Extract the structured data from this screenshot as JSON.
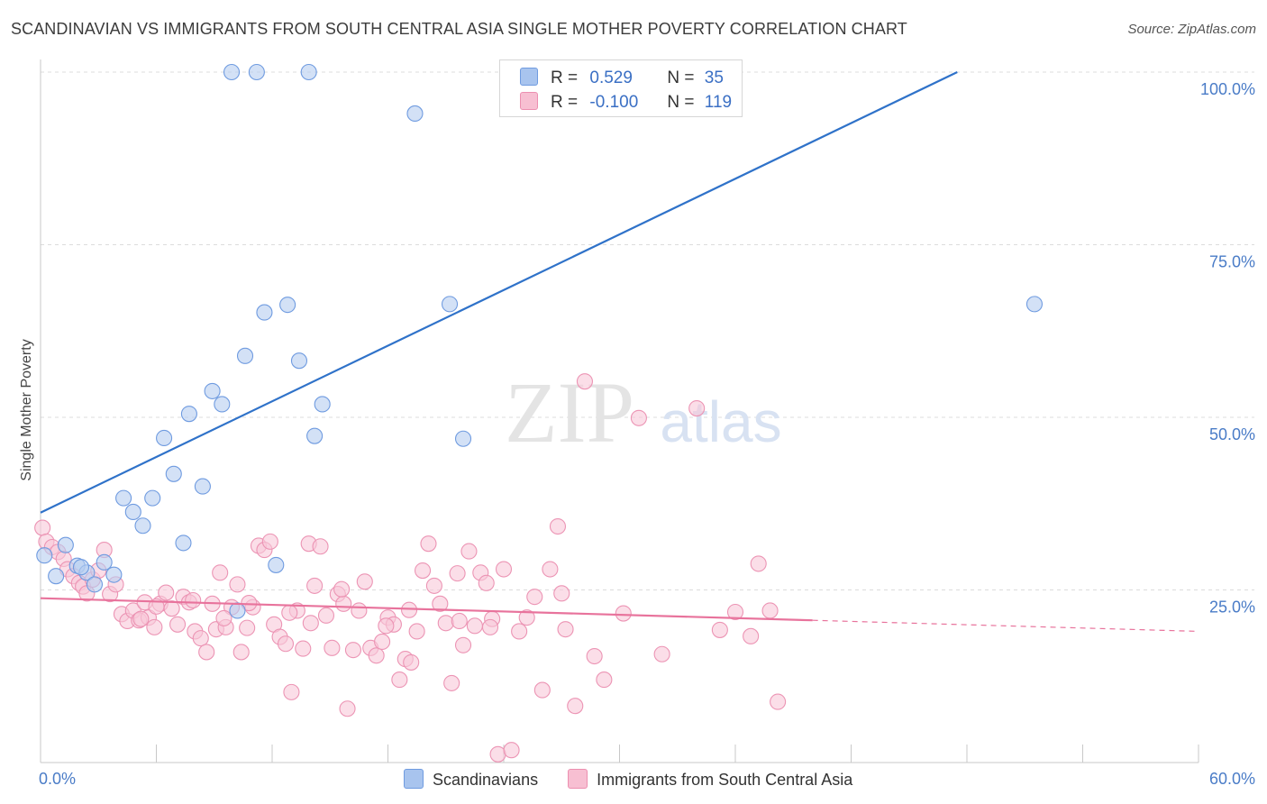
{
  "header": {
    "title": "SCANDINAVIAN VS IMMIGRANTS FROM SOUTH CENTRAL ASIA SINGLE MOTHER POVERTY CORRELATION CHART",
    "source": "Source: ZipAtlas.com"
  },
  "watermark": {
    "zip": "ZIP",
    "atlas": "atlas"
  },
  "legend": {
    "r_label": "R =",
    "n_label": "N =",
    "rows": [
      {
        "name": "Scandinavians",
        "r": "0.529",
        "n": "35",
        "color": "#a8c4ee",
        "border": "#6f9be0"
      },
      {
        "name": "Immigrants from South Central Asia",
        "r": "-0.100",
        "n": "119",
        "color": "#f7bfd2",
        "border": "#ec8fb0"
      }
    ]
  },
  "colors": {
    "blue_fill": "#b5cdf0",
    "blue_stroke": "#6f9be0",
    "blue_line": "#2f72c9",
    "pink_fill": "#f8c8d8",
    "pink_stroke": "#ec94b4",
    "pink_line": "#e8739c",
    "grid": "#dcdcdc",
    "axis_text": "#4a7cc7"
  },
  "chart_data": {
    "type": "scatter",
    "title": "SCANDINAVIAN VS IMMIGRANTS FROM SOUTH CENTRAL ASIA SINGLE MOTHER POVERTY CORRELATION CHART",
    "xlabel": "",
    "ylabel": "Single Mother Poverty",
    "xlim": [
      0,
      60
    ],
    "ylim": [
      0,
      100
    ],
    "x_tick_labels": [
      "0.0%",
      "60.0%"
    ],
    "y_ticks": [
      25,
      50,
      75,
      100
    ],
    "y_tick_labels": [
      "25.0%",
      "50.0%",
      "75.0%",
      "100.0%"
    ],
    "grid": true,
    "legend_position": "top-center",
    "series": [
      {
        "name": "Scandinavians",
        "r": 0.529,
        "n": 35,
        "trend": {
          "x": [
            0,
            47.5
          ],
          "y": [
            36.2,
            100
          ]
        },
        "points": [
          [
            0.2,
            30
          ],
          [
            0.8,
            27
          ],
          [
            1.3,
            31.5
          ],
          [
            1.9,
            28.5
          ],
          [
            2.4,
            27.5
          ],
          [
            2.8,
            25.8
          ],
          [
            3.3,
            29
          ],
          [
            3.8,
            27.2
          ],
          [
            4.3,
            38.3
          ],
          [
            4.8,
            36.3
          ],
          [
            5.3,
            34.3
          ],
          [
            5.8,
            38.3
          ],
          [
            6.4,
            47
          ],
          [
            6.9,
            41.8
          ],
          [
            7.4,
            31.8
          ],
          [
            7.7,
            50.5
          ],
          [
            8.4,
            40
          ],
          [
            8.9,
            53.8
          ],
          [
            9.4,
            51.9
          ],
          [
            9.9,
            100
          ],
          [
            10.2,
            22
          ],
          [
            10.6,
            58.9
          ],
          [
            11.2,
            100
          ],
          [
            11.6,
            65.2
          ],
          [
            12.2,
            28.6
          ],
          [
            12.8,
            66.3
          ],
          [
            13.4,
            58.2
          ],
          [
            13.9,
            100
          ],
          [
            14.2,
            47.3
          ],
          [
            14.6,
            51.9
          ],
          [
            19.4,
            94
          ],
          [
            21.2,
            66.4
          ],
          [
            21.9,
            46.9
          ],
          [
            51.5,
            66.4
          ],
          [
            2.1,
            28.3
          ]
        ]
      },
      {
        "name": "Immigrants from South Central Asia",
        "r": -0.1,
        "n": 119,
        "trend": {
          "x": [
            0,
            40
          ],
          "y": [
            23.8,
            20.6
          ]
        },
        "trend_extension": {
          "x": [
            40,
            60
          ],
          "y": [
            20.6,
            19
          ]
        },
        "points": [
          [
            0.1,
            34
          ],
          [
            0.3,
            32
          ],
          [
            0.6,
            31.2
          ],
          [
            0.9,
            30.5
          ],
          [
            1.2,
            29.5
          ],
          [
            1.4,
            28
          ],
          [
            1.7,
            27
          ],
          [
            2.0,
            26
          ],
          [
            2.2,
            25.5
          ],
          [
            2.4,
            24.5
          ],
          [
            2.7,
            26.5
          ],
          [
            3.0,
            27.8
          ],
          [
            3.3,
            30.8
          ],
          [
            3.6,
            24.4
          ],
          [
            3.9,
            25.8
          ],
          [
            4.2,
            21.5
          ],
          [
            4.5,
            20.5
          ],
          [
            4.8,
            22
          ],
          [
            5.1,
            20.6
          ],
          [
            5.4,
            23.2
          ],
          [
            5.6,
            21
          ],
          [
            5.9,
            19.6
          ],
          [
            6.2,
            23
          ],
          [
            6.5,
            24.6
          ],
          [
            6.8,
            22.3
          ],
          [
            7.1,
            20
          ],
          [
            7.4,
            24
          ],
          [
            7.7,
            23.2
          ],
          [
            8.0,
            19
          ],
          [
            8.3,
            18
          ],
          [
            8.6,
            16
          ],
          [
            8.9,
            23
          ],
          [
            9.1,
            19.3
          ],
          [
            9.3,
            27.5
          ],
          [
            9.6,
            19.6
          ],
          [
            9.9,
            22.5
          ],
          [
            10.2,
            25.8
          ],
          [
            10.4,
            16
          ],
          [
            10.7,
            19.5
          ],
          [
            11.0,
            22.5
          ],
          [
            11.3,
            31.4
          ],
          [
            11.6,
            30.8
          ],
          [
            11.9,
            32
          ],
          [
            12.1,
            20
          ],
          [
            12.4,
            18.2
          ],
          [
            12.7,
            17.2
          ],
          [
            13.0,
            10.2
          ],
          [
            13.3,
            22
          ],
          [
            13.6,
            16.5
          ],
          [
            13.9,
            31.7
          ],
          [
            14.2,
            25.6
          ],
          [
            14.5,
            31.3
          ],
          [
            14.8,
            21.3
          ],
          [
            15.1,
            16.6
          ],
          [
            15.4,
            24.4
          ],
          [
            15.7,
            23
          ],
          [
            15.9,
            7.8
          ],
          [
            16.2,
            16.3
          ],
          [
            16.5,
            22
          ],
          [
            16.8,
            26.2
          ],
          [
            17.1,
            16.6
          ],
          [
            17.4,
            15.5
          ],
          [
            17.7,
            17.5
          ],
          [
            18.0,
            21
          ],
          [
            18.3,
            20
          ],
          [
            18.6,
            12
          ],
          [
            18.9,
            15
          ],
          [
            19.2,
            14.5
          ],
          [
            19.5,
            19
          ],
          [
            19.8,
            27.8
          ],
          [
            20.1,
            31.7
          ],
          [
            20.4,
            25.6
          ],
          [
            20.7,
            23
          ],
          [
            21.0,
            20.2
          ],
          [
            21.3,
            11.5
          ],
          [
            21.6,
            27.4
          ],
          [
            21.9,
            17
          ],
          [
            22.2,
            30.6
          ],
          [
            22.5,
            19.8
          ],
          [
            22.8,
            27.5
          ],
          [
            23.1,
            26
          ],
          [
            23.4,
            20.8
          ],
          [
            23.7,
            1.2
          ],
          [
            24.0,
            28
          ],
          [
            24.4,
            1.8
          ],
          [
            24.8,
            19
          ],
          [
            25.2,
            21
          ],
          [
            25.6,
            24
          ],
          [
            26.0,
            10.5
          ],
          [
            26.4,
            28
          ],
          [
            26.8,
            34.2
          ],
          [
            27.2,
            19.3
          ],
          [
            27.7,
            8.2
          ],
          [
            28.2,
            55.2
          ],
          [
            28.7,
            15.4
          ],
          [
            29.2,
            12
          ],
          [
            30.2,
            21.6
          ],
          [
            31.0,
            49.9
          ],
          [
            32.2,
            15.7
          ],
          [
            34.0,
            51.3
          ],
          [
            35.2,
            19.2
          ],
          [
            36.0,
            21.8
          ],
          [
            36.8,
            18.3
          ],
          [
            37.2,
            28.8
          ],
          [
            37.8,
            22
          ],
          [
            38.2,
            8.8
          ],
          [
            27.0,
            24.5
          ],
          [
            5.2,
            20.8
          ],
          [
            6.0,
            22.6
          ],
          [
            7.9,
            23.5
          ],
          [
            9.5,
            20.9
          ],
          [
            10.8,
            23.1
          ],
          [
            12.9,
            21.7
          ],
          [
            14.0,
            20.2
          ],
          [
            15.6,
            25.1
          ],
          [
            17.9,
            19.8
          ],
          [
            19.1,
            22.1
          ],
          [
            21.7,
            20.5
          ],
          [
            23.3,
            19.6
          ]
        ]
      }
    ]
  }
}
